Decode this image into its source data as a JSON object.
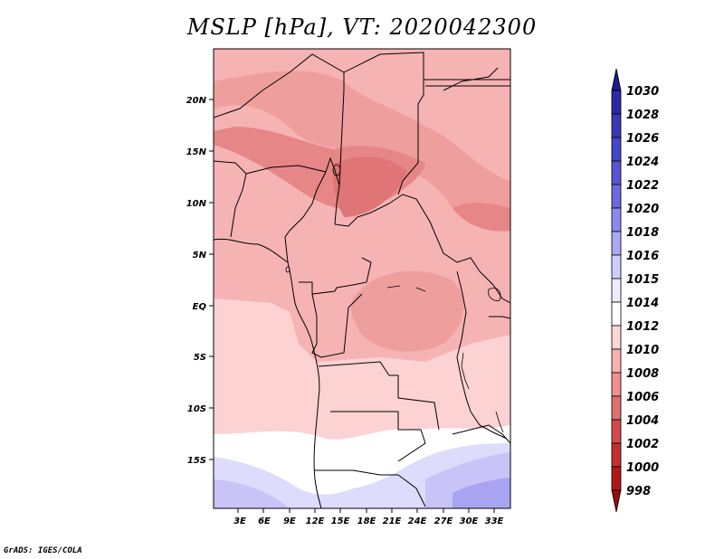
{
  "title": "MSLP [hPa], VT: 2020042300",
  "credit": "GrADS: IGES/COLA",
  "map": {
    "lat_labels": [
      "20N",
      "15N",
      "10N",
      "5N",
      "EQ",
      "5S",
      "10S",
      "15S"
    ],
    "lon_labels": [
      "3E",
      "6E",
      "9E",
      "12E",
      "15E",
      "18E",
      "21E",
      "24E",
      "27E",
      "30E",
      "33E"
    ]
  },
  "colorbar": {
    "levels": [
      "1030",
      "1028",
      "1026",
      "1024",
      "1022",
      "1020",
      "1018",
      "1016",
      "1015",
      "1014",
      "1012",
      "1010",
      "1008",
      "1006",
      "1004",
      "1002",
      "1000",
      "998"
    ],
    "colors": [
      "#1b1b8c",
      "#2a2aa8",
      "#3838b8",
      "#4646c8",
      "#5555d6",
      "#6a6ae0",
      "#8a8aec",
      "#aaaaf4",
      "#cdcdfa",
      "#ececfd",
      "#ffffff",
      "#fdd6d6",
      "#f8b0b0",
      "#f09090",
      "#e07070",
      "#d44a4a",
      "#c43030",
      "#b01818",
      "#901010"
    ]
  },
  "fields": {
    "color_high": "#c9c4f8",
    "color_mid_high": "#dedcfc",
    "color_neutral": "#ffffff",
    "color_low_1": "#fcd2d2",
    "color_low_2": "#f6b3b3",
    "color_low_3": "#ef9e9e",
    "color_low_4": "#e68686"
  }
}
